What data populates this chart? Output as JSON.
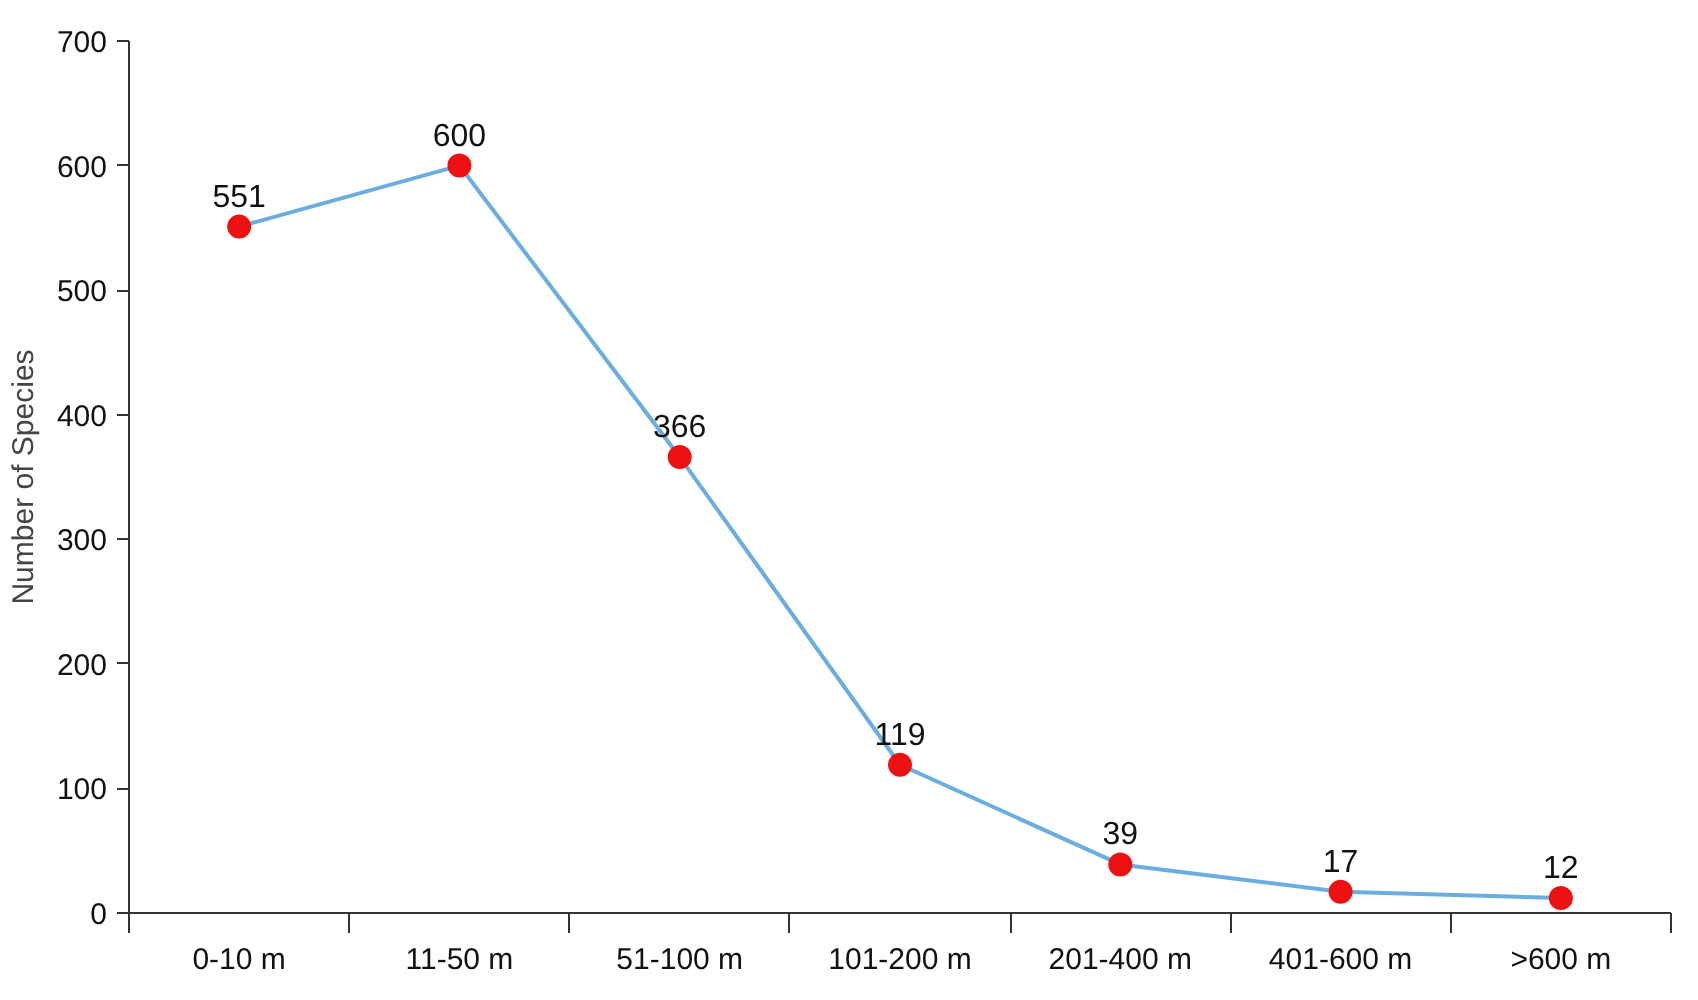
{
  "chart_data": {
    "type": "line",
    "ylabel": "Number of Species",
    "categories": [
      "0-10 m",
      "11-50 m",
      "51-100 m",
      "101-200 m",
      "201-400 m",
      "401-600 m",
      ">600 m"
    ],
    "series": [
      {
        "color": "#6aaee0",
        "colors": [
          "#ee1111",
          "#ee1111",
          "#ee1111",
          "#ee1111",
          "#ee1111",
          "#ee1111",
          "#ee1111"
        ],
        "values": [
          551,
          600,
          366,
          119,
          39,
          17,
          12
        ]
      }
    ],
    "marker": "circle",
    "data_labels": true,
    "ylim": [
      0,
      700
    ],
    "yticks": [
      0,
      100,
      200,
      300,
      400,
      500,
      600,
      700
    ]
  }
}
